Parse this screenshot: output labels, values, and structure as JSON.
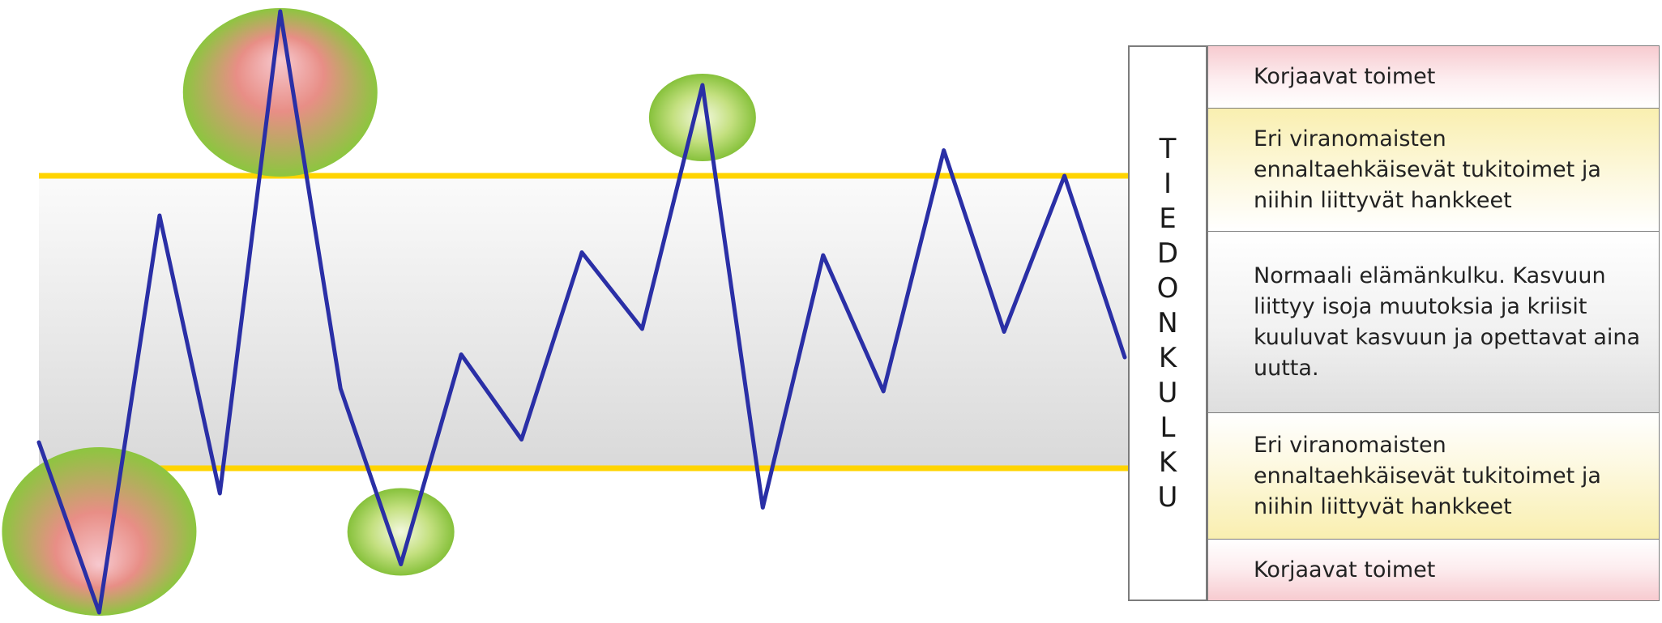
{
  "chart_data": {
    "type": "line",
    "series": [
      {
        "values": [
          -43,
          -103,
          37,
          -61,
          109,
          -24,
          -86,
          -12,
          -42,
          24,
          -3,
          83,
          -66,
          23,
          -25,
          60,
          -4,
          51,
          -13
        ]
      }
    ],
    "ylim": [
      -103,
      109
    ],
    "thresholds": {
      "red": [
        95,
        -103
      ],
      "yellow": [
        52,
        -43
      ]
    },
    "highlights": [
      {
        "index": 1,
        "kind": "red-green"
      },
      {
        "index": 4,
        "kind": "red-green"
      },
      {
        "index": 6,
        "kind": "green"
      },
      {
        "index": 11,
        "kind": "green"
      }
    ]
  },
  "side_label": [
    "T",
    "I",
    "E",
    "D",
    "O",
    "N",
    "K",
    "U",
    "L",
    "K",
    "U"
  ],
  "zones": {
    "top_red": "Korjaavat toimet",
    "upper_yellow": "Eri viranomaisten ennaltaehkäisevät tukitoimet ja niihin liittyvät hankkeet",
    "normal": "Normaali elämänkulku. Kasvuun liittyy isoja muutoksia ja kriisit kuuluvat kasvuun ja opettavat aina uutta.",
    "lower_yellow": "Eri viranomaisten ennaltaehkäisevät tukitoimet ja niihin liittyvät hankkeet",
    "bottom_red": "Korjaavat toimet"
  },
  "colors": {
    "line": "#2a2fa6",
    "red_limit": "#d7281f",
    "yellow_limit": "#ffd400",
    "band_top": "#fafafa",
    "band_bottom": "#d9d9d9",
    "circle_green": "#8dc63f",
    "circle_red": "#e5534b"
  }
}
